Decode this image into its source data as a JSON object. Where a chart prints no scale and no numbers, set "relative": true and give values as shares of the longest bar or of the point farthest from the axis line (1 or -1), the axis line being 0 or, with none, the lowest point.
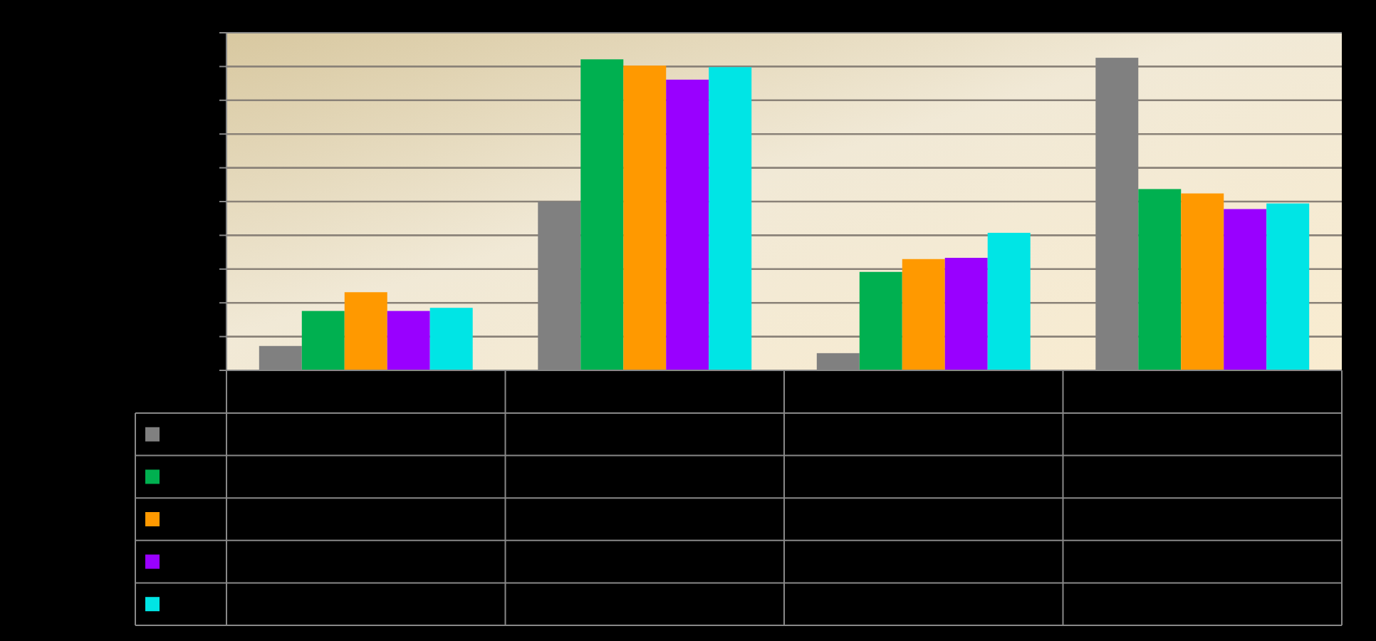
{
  "chart_data": {
    "type": "bar",
    "relative": true,
    "grid": true,
    "categories": [
      null,
      null,
      null,
      null
    ],
    "series": [
      {
        "color": "#808080",
        "values": [
          0.078,
          0.54,
          0.055,
          1
        ]
      },
      {
        "color": "#00b050",
        "values": [
          0.19,
          0.995,
          0.315,
          0.58
        ]
      },
      {
        "color": "#ff9900",
        "values": [
          0.25,
          0.975,
          0.356,
          0.566
        ]
      },
      {
        "color": "#9900ff",
        "values": [
          0.19,
          0.93,
          0.36,
          0.516
        ]
      },
      {
        "color": "#00e5e5",
        "values": [
          0.2,
          0.97,
          0.44,
          0.534
        ]
      }
    ]
  }
}
